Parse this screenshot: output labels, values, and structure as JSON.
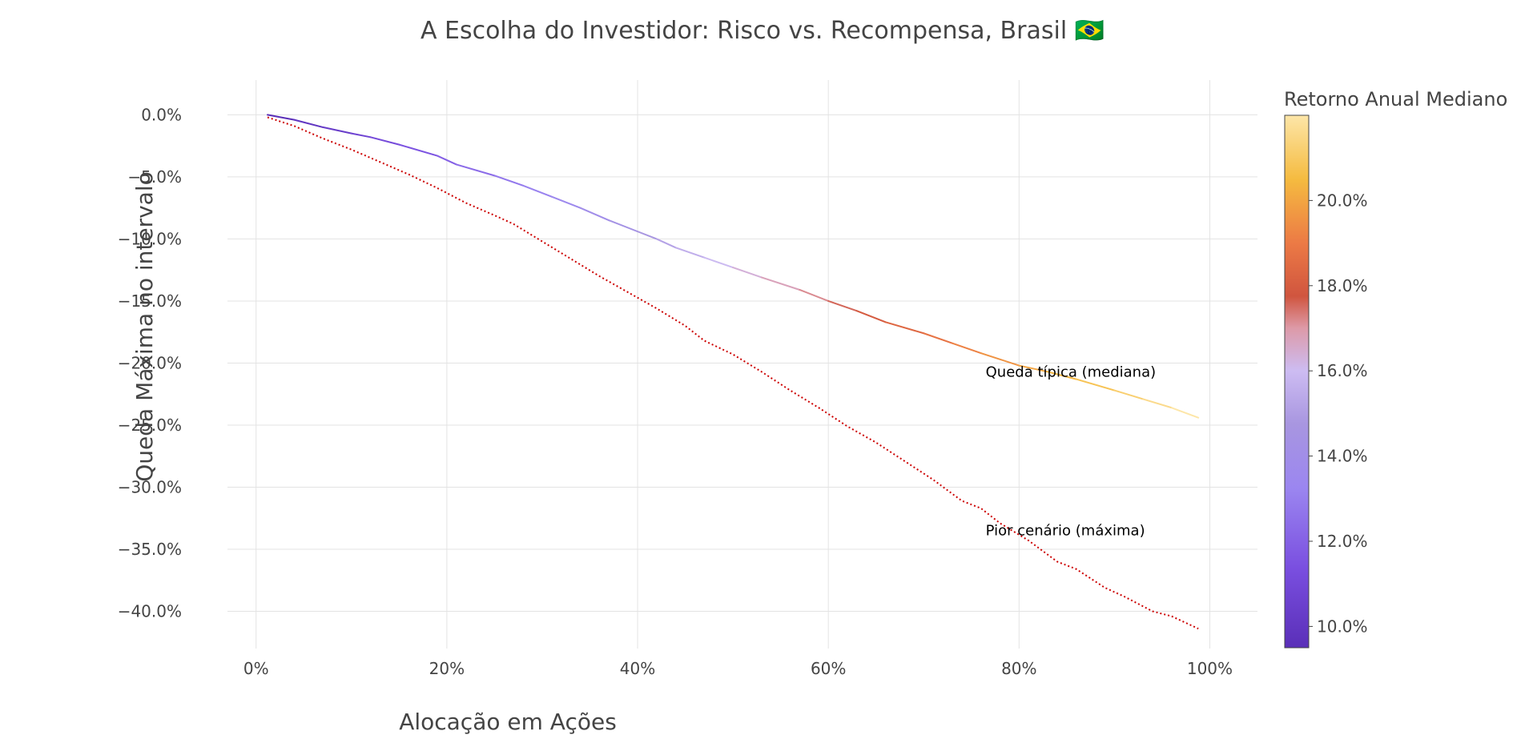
{
  "chart_data": {
    "type": "line",
    "title": "A Escolha do Investidor: Risco vs. Recompensa, Brasil 🇧🇷",
    "xlabel": "Alocação em Ações",
    "ylabel": "Queda Máxima no intervalo",
    "xlim": [
      -0.03,
      1.05
    ],
    "ylim": [
      -0.43,
      0.028
    ],
    "x_ticks": [
      0,
      0.2,
      0.4,
      0.6,
      0.8,
      1.0
    ],
    "x_tick_labels": [
      "0%",
      "20%",
      "40%",
      "60%",
      "80%",
      "100%"
    ],
    "y_ticks": [
      0,
      -0.05,
      -0.1,
      -0.15,
      -0.2,
      -0.25,
      -0.3,
      -0.35,
      -0.4
    ],
    "y_tick_labels": [
      "0.0%",
      "−5.0%",
      "−10.0%",
      "−15.0%",
      "−20.0%",
      "−25.0%",
      "−30.0%",
      "−35.0%",
      "−40.0%"
    ],
    "grid": true,
    "series": [
      {
        "style": "solid-colorscale",
        "points": [
          [
            0.012,
            0.0
          ],
          [
            0.04,
            -0.004
          ],
          [
            0.07,
            -0.01
          ],
          [
            0.1,
            -0.015
          ],
          [
            0.12,
            -0.018
          ],
          [
            0.15,
            -0.024
          ],
          [
            0.19,
            -0.033
          ],
          [
            0.21,
            -0.04
          ],
          [
            0.25,
            -0.049
          ],
          [
            0.28,
            -0.057
          ],
          [
            0.31,
            -0.066
          ],
          [
            0.34,
            -0.075
          ],
          [
            0.37,
            -0.085
          ],
          [
            0.4,
            -0.094
          ],
          [
            0.42,
            -0.1
          ],
          [
            0.44,
            -0.107
          ],
          [
            0.47,
            -0.115
          ],
          [
            0.5,
            -0.123
          ],
          [
            0.53,
            -0.131
          ],
          [
            0.57,
            -0.141
          ],
          [
            0.6,
            -0.15
          ],
          [
            0.63,
            -0.158
          ],
          [
            0.66,
            -0.167
          ],
          [
            0.7,
            -0.176
          ],
          [
            0.73,
            -0.184
          ],
          [
            0.76,
            -0.192
          ],
          [
            0.8,
            -0.202
          ],
          [
            0.83,
            -0.207
          ],
          [
            0.86,
            -0.213
          ],
          [
            0.9,
            -0.222
          ],
          [
            0.93,
            -0.229
          ],
          [
            0.96,
            -0.236
          ],
          [
            0.988,
            -0.244
          ]
        ]
      },
      {
        "style": "dotted",
        "color": "#cc0000",
        "points": [
          [
            0.012,
            -0.002
          ],
          [
            0.04,
            -0.009
          ],
          [
            0.07,
            -0.019
          ],
          [
            0.1,
            -0.028
          ],
          [
            0.13,
            -0.038
          ],
          [
            0.16,
            -0.048
          ],
          [
            0.19,
            -0.059
          ],
          [
            0.22,
            -0.071
          ],
          [
            0.25,
            -0.081
          ],
          [
            0.27,
            -0.088
          ],
          [
            0.3,
            -0.102
          ],
          [
            0.33,
            -0.116
          ],
          [
            0.36,
            -0.13
          ],
          [
            0.39,
            -0.143
          ],
          [
            0.42,
            -0.156
          ],
          [
            0.45,
            -0.17
          ],
          [
            0.47,
            -0.182
          ],
          [
            0.5,
            -0.193
          ],
          [
            0.53,
            -0.207
          ],
          [
            0.56,
            -0.222
          ],
          [
            0.59,
            -0.236
          ],
          [
            0.62,
            -0.251
          ],
          [
            0.65,
            -0.264
          ],
          [
            0.68,
            -0.279
          ],
          [
            0.71,
            -0.294
          ],
          [
            0.74,
            -0.311
          ],
          [
            0.76,
            -0.317
          ],
          [
            0.78,
            -0.329
          ],
          [
            0.81,
            -0.343
          ],
          [
            0.84,
            -0.36
          ],
          [
            0.86,
            -0.366
          ],
          [
            0.89,
            -0.381
          ],
          [
            0.91,
            -0.388
          ],
          [
            0.94,
            -0.4
          ],
          [
            0.96,
            -0.404
          ],
          [
            0.988,
            -0.414
          ]
        ]
      }
    ],
    "annotations": [
      {
        "text": "Queda típica (mediana)",
        "x": 0.765,
        "y": -0.207
      },
      {
        "text": "Pior cenário (máxima)",
        "x": 0.765,
        "y": -0.335
      }
    ],
    "colorbar": {
      "title": "Retorno Anual Mediano",
      "range": [
        0.095,
        0.22
      ],
      "ticks": [
        0.1,
        0.12,
        0.14,
        0.16,
        0.18,
        0.2
      ],
      "tick_labels": [
        "10.0%",
        "12.0%",
        "14.0%",
        "16.0%",
        "18.0%",
        "20.0%"
      ],
      "colorscale": [
        [
          0.0,
          "#5a2fb8"
        ],
        [
          0.15,
          "#7a4fe0"
        ],
        [
          0.3,
          "#9b86f0"
        ],
        [
          0.42,
          "#a896e0"
        ],
        [
          0.52,
          "#cdbcf2"
        ],
        [
          0.6,
          "#dd9aa8"
        ],
        [
          0.66,
          "#d0553f"
        ],
        [
          0.76,
          "#ec7a45"
        ],
        [
          0.88,
          "#f5bb40"
        ],
        [
          1.0,
          "#fde6a8"
        ]
      ]
    }
  }
}
